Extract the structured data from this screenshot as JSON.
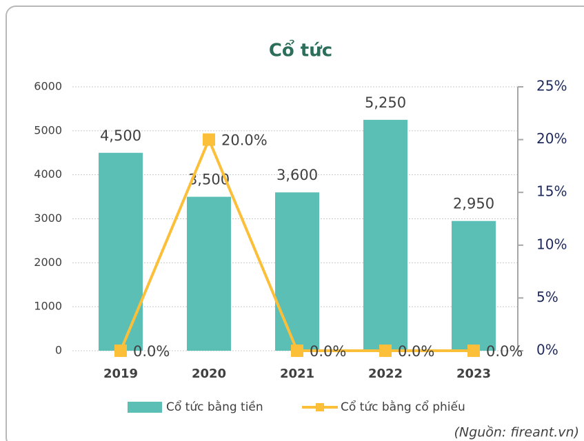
{
  "chart_data": {
    "type": "bar",
    "title": "Cổ tức",
    "categories": [
      "2019",
      "2020",
      "2021",
      "2022",
      "2023"
    ],
    "series": [
      {
        "name": "Cổ tức bằng tiền",
        "color": "#5cbfb6",
        "values": [
          4500,
          3500,
          3600,
          5250,
          2950
        ],
        "value_labels": [
          "4,500",
          "3,500",
          "3,600",
          "5,250",
          "2,950"
        ]
      },
      {
        "name": "Cổ tức bằng cổ phiếu",
        "type": "line",
        "axis": "y2",
        "color": "#fbbf3a",
        "values": [
          0,
          20,
          0,
          0,
          0
        ],
        "value_labels": [
          "0.0%",
          "20.0%",
          "0.0%",
          "0.0%",
          "0.0%"
        ]
      }
    ],
    "ylim": [
      0,
      6000
    ],
    "yticks": [
      0,
      1000,
      2000,
      3000,
      4000,
      5000,
      6000
    ],
    "y2lim": [
      0,
      25
    ],
    "y2ticks": [
      {
        "value": 0,
        "label": "0%"
      },
      {
        "value": 5,
        "label": "5%"
      },
      {
        "value": 10,
        "label": "10%"
      },
      {
        "value": 15,
        "label": "15%"
      },
      {
        "value": 20,
        "label": "20%"
      },
      {
        "value": 25,
        "label": "25%"
      }
    ],
    "grid": true,
    "legend": "bottom",
    "source": "(Nguồn: fireant.vn)"
  }
}
